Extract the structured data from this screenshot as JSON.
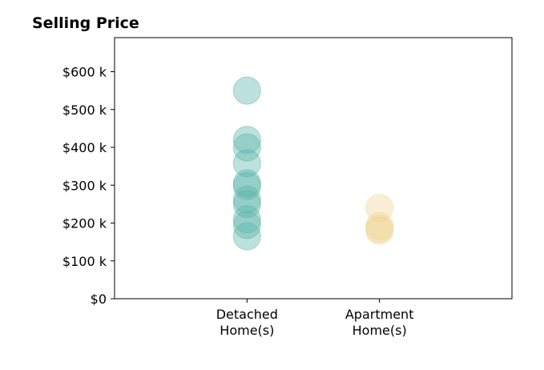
{
  "chart_data": {
    "type": "scatter",
    "title": "Selling Price",
    "xlabel": "",
    "ylabel": "",
    "categories": [
      "Detached\nHome(s)",
      "Apartment\nHome(s)"
    ],
    "ylim": [
      0,
      690000
    ],
    "y_ticks": [
      0,
      100000,
      200000,
      300000,
      400000,
      500000,
      600000
    ],
    "y_tick_labels": [
      "$0",
      "$100 k",
      "$200 k",
      "$300 k",
      "$400 k",
      "$500 k",
      "$600 k"
    ],
    "grid": false,
    "legend": "none",
    "series": [
      {
        "category": "Detached\nHome(s)",
        "color": "#5ab4aa",
        "values": [
          550000,
          420000,
          400000,
          358000,
          305000,
          298000,
          262000,
          250000,
          210000,
          195000,
          165000
        ]
      },
      {
        "category": "Apartment\nHome(s)",
        "color": "#f0d595",
        "values": [
          240000,
          192000,
          185000,
          180000
        ]
      }
    ]
  }
}
